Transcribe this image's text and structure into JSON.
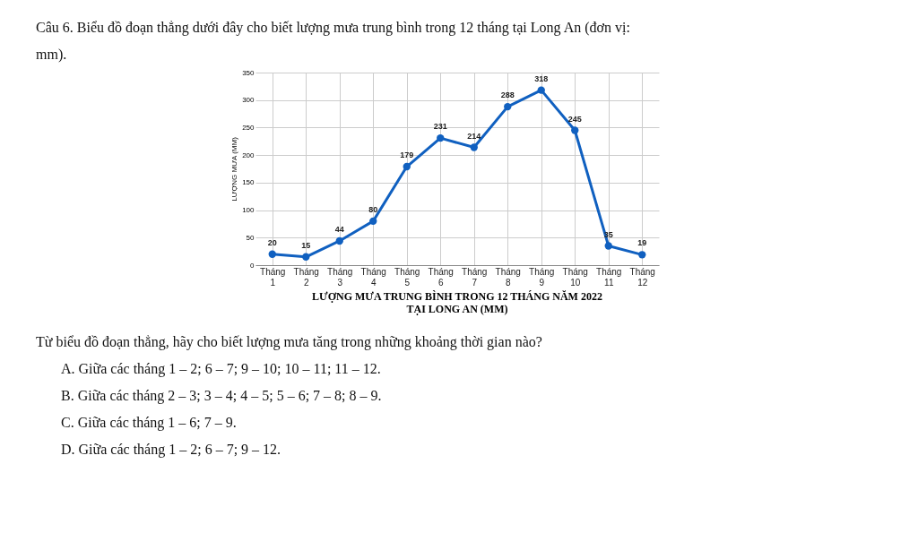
{
  "chart_data": {
    "type": "line",
    "title": "LƯỢNG MƯA TRUNG BÌNH TRONG 12 THÁNG NĂM 2022 TẠI LONG AN (MM)",
    "ylabel": "LƯỢNG MƯA (MM)",
    "categories": [
      "Tháng 1",
      "Tháng 2",
      "Tháng 3",
      "Tháng 4",
      "Tháng 5",
      "Tháng 6",
      "Tháng 7",
      "Tháng 8",
      "Tháng 9",
      "Tháng 10",
      "Tháng 11",
      "Tháng 12"
    ],
    "series": [
      {
        "color": "#1060c0",
        "values": [
          20,
          15,
          44,
          80,
          179,
          231,
          214,
          288,
          318,
          245,
          35,
          19
        ]
      }
    ],
    "ylim": [
      0,
      350
    ],
    "yticks": [
      0,
      50,
      100,
      150,
      200,
      250,
      300,
      350
    ],
    "grid": true,
    "marker": "circle",
    "line_style": "solid",
    "data_labels": true,
    "annotations": [
      "Câu 6. Biểu đồ đoạn thẳng dưới đây cho biết lượng mưa trung bình trong 12 tháng tại Long An (đơn vị: mm).",
      "Từ biểu đồ đoạn thẳng, hãy cho biết lượng mưa tăng trong những khoảng thời gian nào?",
      "A. Giữa các tháng 1 – 2; 6 – 7; 9 – 10; 10 – 11; 11 – 12.",
      "B. Giữa các tháng 2 – 3; 3 – 4; 4 – 5; 5 – 6; 7 – 8; 8 – 9.",
      "C. Giữa các tháng 1 – 6; 7 – 9.",
      "D. Giữa các tháng 1 – 2; 6 – 7; 9 – 12."
    ]
  }
}
